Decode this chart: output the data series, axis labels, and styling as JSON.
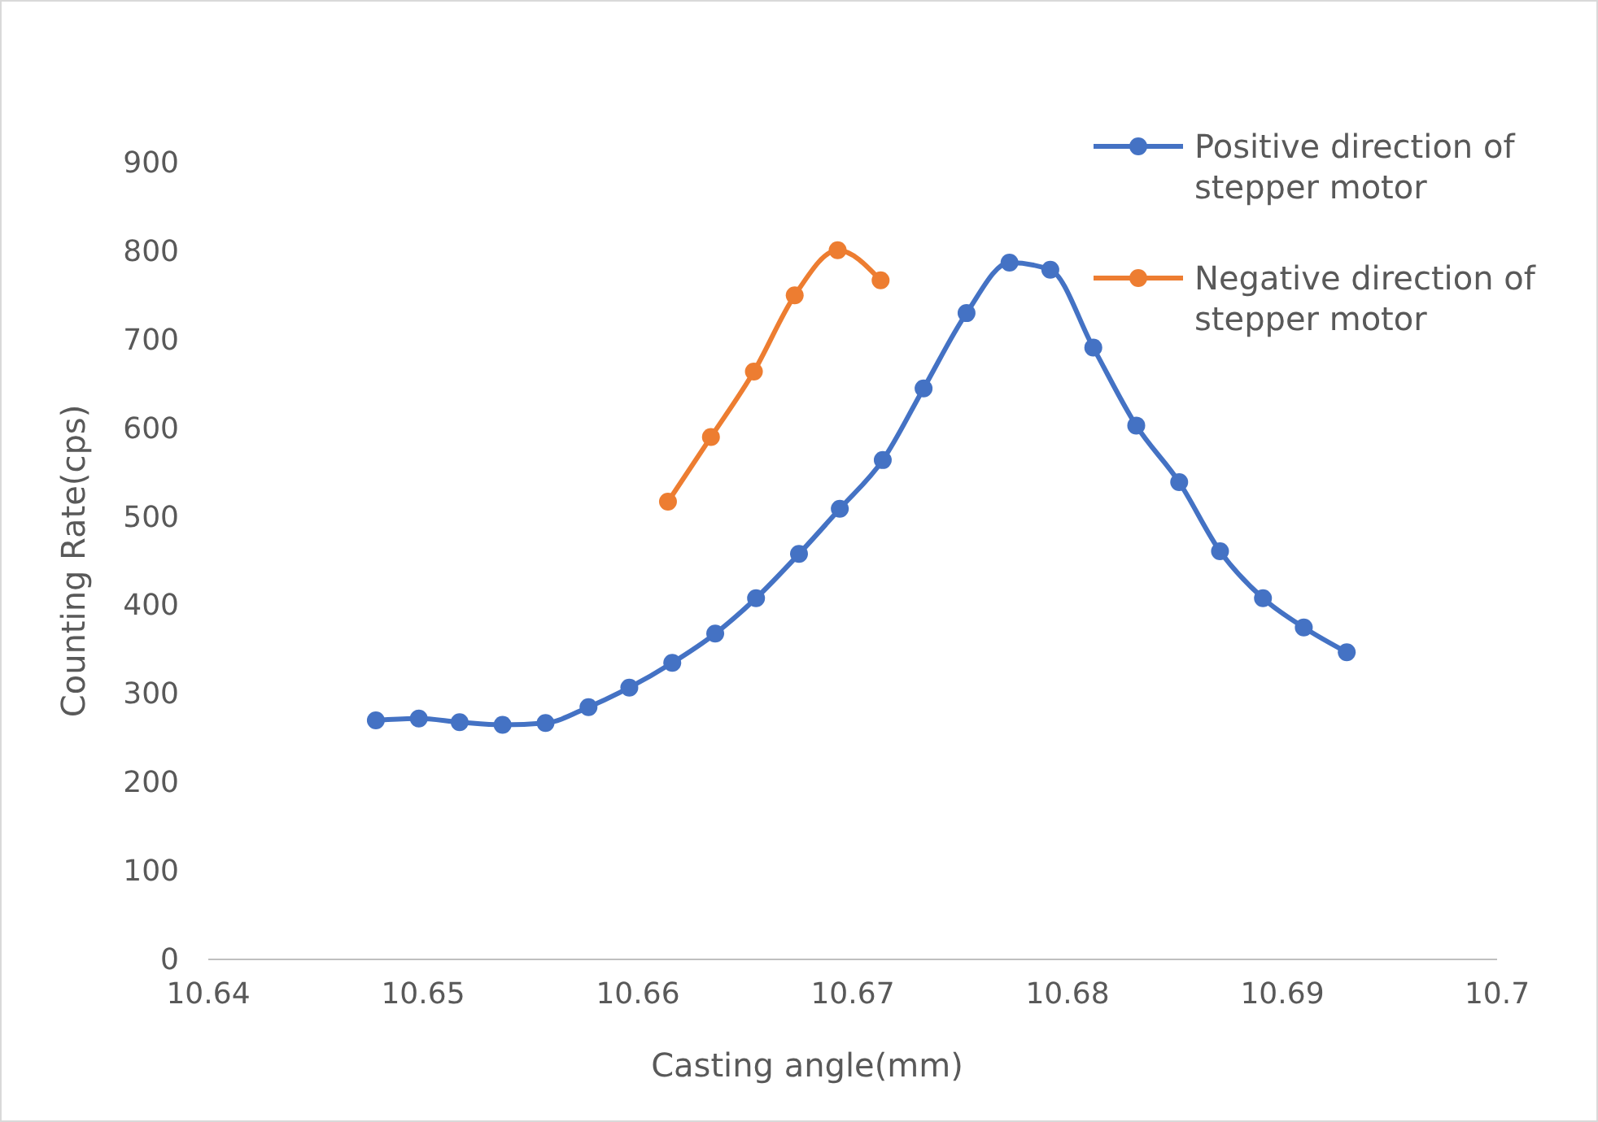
{
  "chart_data": {
    "type": "line",
    "xlabel": "Casting angle(mm)",
    "ylabel": "Counting Rate(cps)",
    "xlim": [
      10.64,
      10.7
    ],
    "xticks": [
      10.64,
      10.65,
      10.66,
      10.67,
      10.68,
      10.69,
      10.7
    ],
    "ylim": [
      0,
      900
    ],
    "yticks": [
      0,
      100,
      200,
      300,
      400,
      500,
      600,
      700,
      800,
      900
    ],
    "grid": false,
    "legend": "top right",
    "marker": "circle",
    "line_style": "solid",
    "series": [
      {
        "name": "Positive direction of stepper motor",
        "color": "#4472c4",
        "x": [
          10.6478,
          10.6498,
          10.6517,
          10.6537,
          10.6557,
          10.6577,
          10.6596,
          10.6616,
          10.6636,
          10.6655,
          10.6675,
          10.6694,
          10.6714,
          10.6733,
          10.6753,
          10.6773,
          10.6792,
          10.6812,
          10.6832,
          10.6852,
          10.6871,
          10.6891,
          10.691,
          10.693
        ],
        "values": [
          270,
          272,
          268,
          265,
          267,
          285,
          307,
          335,
          368,
          408,
          458,
          509,
          564,
          645,
          730,
          787,
          779,
          691,
          603,
          539,
          461,
          408,
          375,
          347
        ]
      },
      {
        "name": "Negative direction of stepper motor",
        "color": "#ed7d31",
        "x": [
          10.6614,
          10.6634,
          10.6654,
          10.6673,
          10.6693,
          10.6713
        ],
        "values": [
          517,
          590,
          664,
          750,
          801,
          767
        ]
      }
    ]
  }
}
